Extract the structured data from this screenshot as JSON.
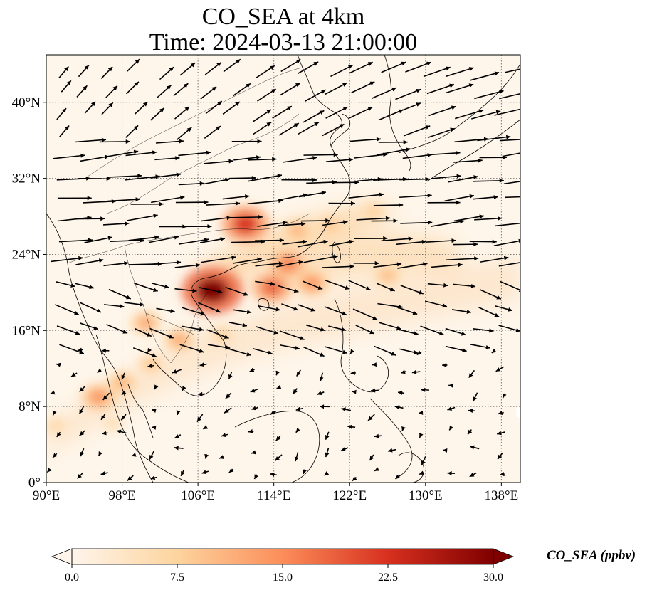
{
  "title_line1": "CO_SEA at 4km",
  "title_line2": "Time: 2024-03-13 21:00:00",
  "map": {
    "extent": {
      "lon_min": 90,
      "lon_max": 140,
      "lat_min": 0,
      "lat_max": 45
    },
    "x_ticks": [
      {
        "value": 90,
        "label": "90°E"
      },
      {
        "value": 98,
        "label": "98°E"
      },
      {
        "value": 106,
        "label": "106°E"
      },
      {
        "value": 114,
        "label": "114°E"
      },
      {
        "value": 122,
        "label": "122°E"
      },
      {
        "value": 130,
        "label": "130°E"
      },
      {
        "value": 138,
        "label": "138°E"
      }
    ],
    "y_ticks": [
      {
        "value": 0,
        "label": "0°"
      },
      {
        "value": 8,
        "label": "8°N"
      },
      {
        "value": 16,
        "label": "16°N"
      },
      {
        "value": 24,
        "label": "24°N"
      },
      {
        "value": 32,
        "label": "32°N"
      },
      {
        "value": 40,
        "label": "40°N"
      }
    ],
    "gridlines": true,
    "coastlines": true,
    "wind_vectors": true,
    "co_hotspots": [
      {
        "lon": 107.5,
        "lat": 20.2,
        "value": 30
      },
      {
        "lon": 111.0,
        "lat": 27.2,
        "value": 22
      },
      {
        "lon": 113.8,
        "lat": 20.5,
        "value": 18
      },
      {
        "lon": 115.5,
        "lat": 23.0,
        "value": 16
      },
      {
        "lon": 118.0,
        "lat": 21.0,
        "value": 14
      },
      {
        "lon": 116.5,
        "lat": 26.5,
        "value": 11
      },
      {
        "lon": 120.0,
        "lat": 27.0,
        "value": 9
      },
      {
        "lon": 124.5,
        "lat": 28.5,
        "value": 8
      },
      {
        "lon": 126.0,
        "lat": 21.8,
        "value": 10
      },
      {
        "lon": 104.0,
        "lat": 15.0,
        "value": 12
      },
      {
        "lon": 108.5,
        "lat": 15.5,
        "value": 8
      },
      {
        "lon": 100.5,
        "lat": 16.8,
        "value": 12
      },
      {
        "lon": 95.5,
        "lat": 9.0,
        "value": 14
      },
      {
        "lon": 98.0,
        "lat": 10.5,
        "value": 11
      },
      {
        "lon": 101.0,
        "lat": 12.5,
        "value": 9
      },
      {
        "lon": 91.0,
        "lat": 6.0,
        "value": 7
      },
      {
        "lon": 97.0,
        "lat": 6.2,
        "value": 6
      }
    ]
  },
  "colorbar": {
    "label": "CO_SEA (ppbv)",
    "min": 0.0,
    "max": 30.0,
    "ticks": [
      "0.0",
      "7.5",
      "15.0",
      "22.5",
      "30.0"
    ],
    "colors": [
      "#fff5eb",
      "#fdd49e",
      "#fc8d59",
      "#d7301f",
      "#7f0000"
    ]
  }
}
